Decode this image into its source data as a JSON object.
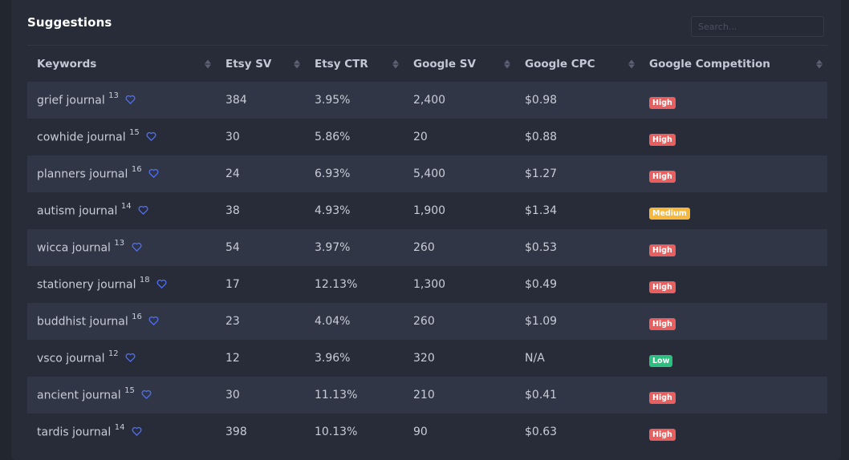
{
  "panel": {
    "title": "Suggestions"
  },
  "search": {
    "placeholder": "Search..."
  },
  "columns": [
    "Keywords",
    "Etsy SV",
    "Etsy CTR",
    "Google SV",
    "Google CPC",
    "Google Competition"
  ],
  "competition_colors": {
    "High": "#e95f5f",
    "Medium": "#f5b73c",
    "Low": "#2dbf7f"
  },
  "accent_color": "#4f6ff5",
  "rows": [
    {
      "keyword": "grief journal",
      "count": "13",
      "etsy_sv": "384",
      "etsy_ctr": "3.95%",
      "google_sv": "2,400",
      "google_cpc": "$0.98",
      "competition": "High"
    },
    {
      "keyword": "cowhide journal",
      "count": "15",
      "etsy_sv": "30",
      "etsy_ctr": "5.86%",
      "google_sv": "20",
      "google_cpc": "$0.88",
      "competition": "High"
    },
    {
      "keyword": "planners journal",
      "count": "16",
      "etsy_sv": "24",
      "etsy_ctr": "6.93%",
      "google_sv": "5,400",
      "google_cpc": "$1.27",
      "competition": "High"
    },
    {
      "keyword": "autism journal",
      "count": "14",
      "etsy_sv": "38",
      "etsy_ctr": "4.93%",
      "google_sv": "1,900",
      "google_cpc": "$1.34",
      "competition": "Medium"
    },
    {
      "keyword": "wicca journal",
      "count": "13",
      "etsy_sv": "54",
      "etsy_ctr": "3.97%",
      "google_sv": "260",
      "google_cpc": "$0.53",
      "competition": "High"
    },
    {
      "keyword": "stationery journal",
      "count": "18",
      "etsy_sv": "17",
      "etsy_ctr": "12.13%",
      "google_sv": "1,300",
      "google_cpc": "$0.49",
      "competition": "High"
    },
    {
      "keyword": "buddhist journal",
      "count": "16",
      "etsy_sv": "23",
      "etsy_ctr": "4.04%",
      "google_sv": "260",
      "google_cpc": "$1.09",
      "competition": "High"
    },
    {
      "keyword": "vsco journal",
      "count": "12",
      "etsy_sv": "12",
      "etsy_ctr": "3.96%",
      "google_sv": "320",
      "google_cpc": "N/A",
      "competition": "Low"
    },
    {
      "keyword": "ancient journal",
      "count": "15",
      "etsy_sv": "30",
      "etsy_ctr": "11.13%",
      "google_sv": "210",
      "google_cpc": "$0.41",
      "competition": "High"
    },
    {
      "keyword": "tardis journal",
      "count": "14",
      "etsy_sv": "398",
      "etsy_ctr": "10.13%",
      "google_sv": "90",
      "google_cpc": "$0.63",
      "competition": "High"
    }
  ]
}
